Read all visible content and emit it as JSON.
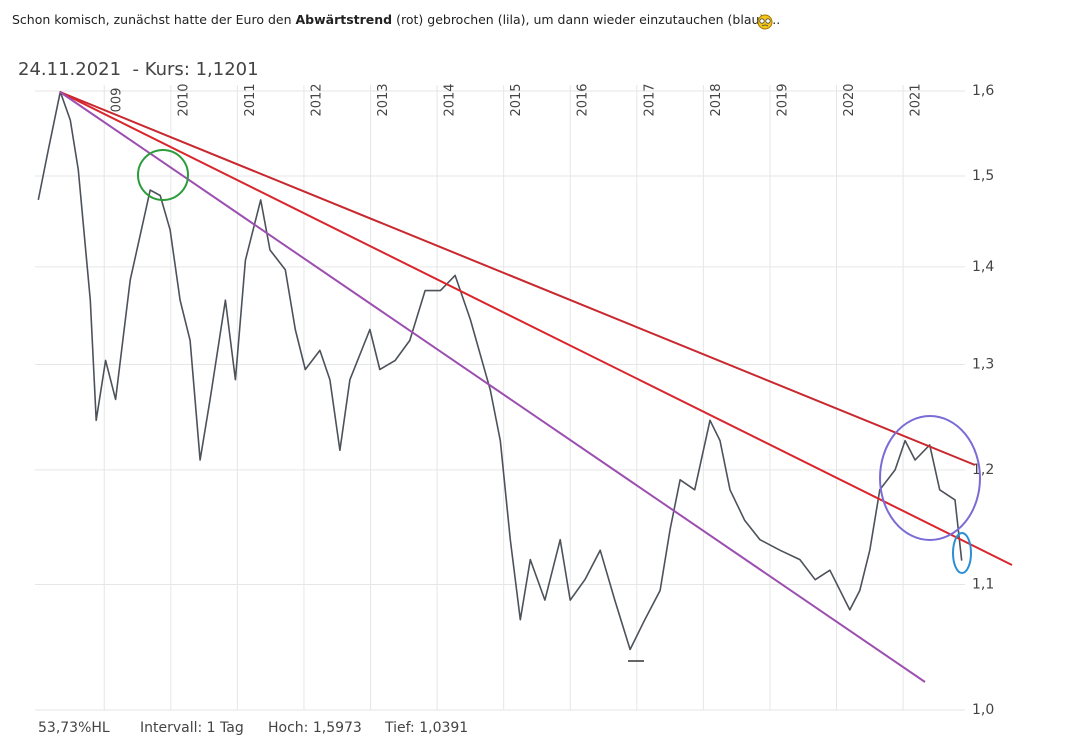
{
  "post": {
    "before": "Schon komisch, zunächst hatte der Euro den ",
    "bold": "Abwärtstrend",
    "after": " (rot) gebrochen (lila), um dann wieder einzutauchen (blau)...."
  },
  "chart_data": {
    "type": "line",
    "title": "24.11.2021  - Kurs: 1,1201",
    "log_scale": true,
    "grid": true,
    "color": "#4d525a",
    "x": [
      2008.01,
      2008.16,
      2008.34,
      2008.49,
      2008.61,
      2008.79,
      2008.88,
      2009.02,
      2009.17,
      2009.39,
      2009.69,
      2009.84,
      2009.99,
      2010.14,
      2010.29,
      2010.44,
      2010.59,
      2010.82,
      2010.97,
      2011.12,
      2011.35,
      2011.49,
      2011.72,
      2011.87,
      2012.02,
      2012.24,
      2012.39,
      2012.54,
      2012.69,
      2012.99,
      2013.14,
      2013.37,
      2013.59,
      2013.82,
      2014.05,
      2014.27,
      2014.5,
      2014.8,
      2014.95,
      2015.1,
      2015.25,
      2015.4,
      2015.62,
      2015.85,
      2016.0,
      2016.22,
      2016.45,
      2016.67,
      2016.9,
      2017.12,
      2017.35,
      2017.5,
      2017.65,
      2017.87,
      2018.1,
      2018.25,
      2018.4,
      2018.62,
      2018.85,
      2019.15,
      2019.45,
      2019.68,
      2019.9,
      2020.2,
      2020.35,
      2020.5,
      2020.65,
      2020.88,
      2021.03,
      2021.18,
      2021.4,
      2021.55,
      2021.78,
      2021.88
    ],
    "values": [
      1.473,
      1.53,
      1.599,
      1.565,
      1.507,
      1.365,
      1.246,
      1.304,
      1.266,
      1.386,
      1.484,
      1.478,
      1.44,
      1.365,
      1.324,
      1.209,
      1.266,
      1.365,
      1.285,
      1.407,
      1.473,
      1.418,
      1.397,
      1.335,
      1.295,
      1.314,
      1.285,
      1.218,
      1.285,
      1.335,
      1.295,
      1.304,
      1.324,
      1.375,
      1.375,
      1.391,
      1.345,
      1.275,
      1.227,
      1.138,
      1.071,
      1.121,
      1.087,
      1.138,
      1.087,
      1.104,
      1.129,
      1.087,
      1.047,
      1.071,
      1.095,
      1.147,
      1.191,
      1.182,
      1.246,
      1.227,
      1.182,
      1.155,
      1.138,
      1.129,
      1.121,
      1.104,
      1.112,
      1.079,
      1.095,
      1.129,
      1.182,
      1.2,
      1.227,
      1.209,
      1.223,
      1.182,
      1.173,
      1.1201
    ],
    "xlim": [
      2007.96,
      2021.93
    ],
    "xticks": [
      {
        "value": 2009,
        "label": "009"
      },
      2010,
      2011,
      2012,
      2013,
      2014,
      2015,
      2016,
      2017,
      2018,
      2019,
      2020,
      2021
    ],
    "ylim": [
      1.0,
      1.6
    ],
    "yticks": [
      {
        "value": 1.0,
        "label": "1,0"
      },
      {
        "value": 1.1,
        "label": "1,1"
      },
      {
        "value": 1.2,
        "label": "1,2"
      },
      {
        "value": 1.3,
        "label": "1,3"
      },
      {
        "value": 1.4,
        "label": "1,4"
      },
      {
        "value": 1.5,
        "label": "1,5"
      },
      {
        "value": 1.6,
        "label": "1,6"
      }
    ],
    "stats": [
      "53,73%HL",
      "Intervall: 1 Tag",
      "Hoch: 1,5973",
      "Tief: 1,0391"
    ]
  }
}
